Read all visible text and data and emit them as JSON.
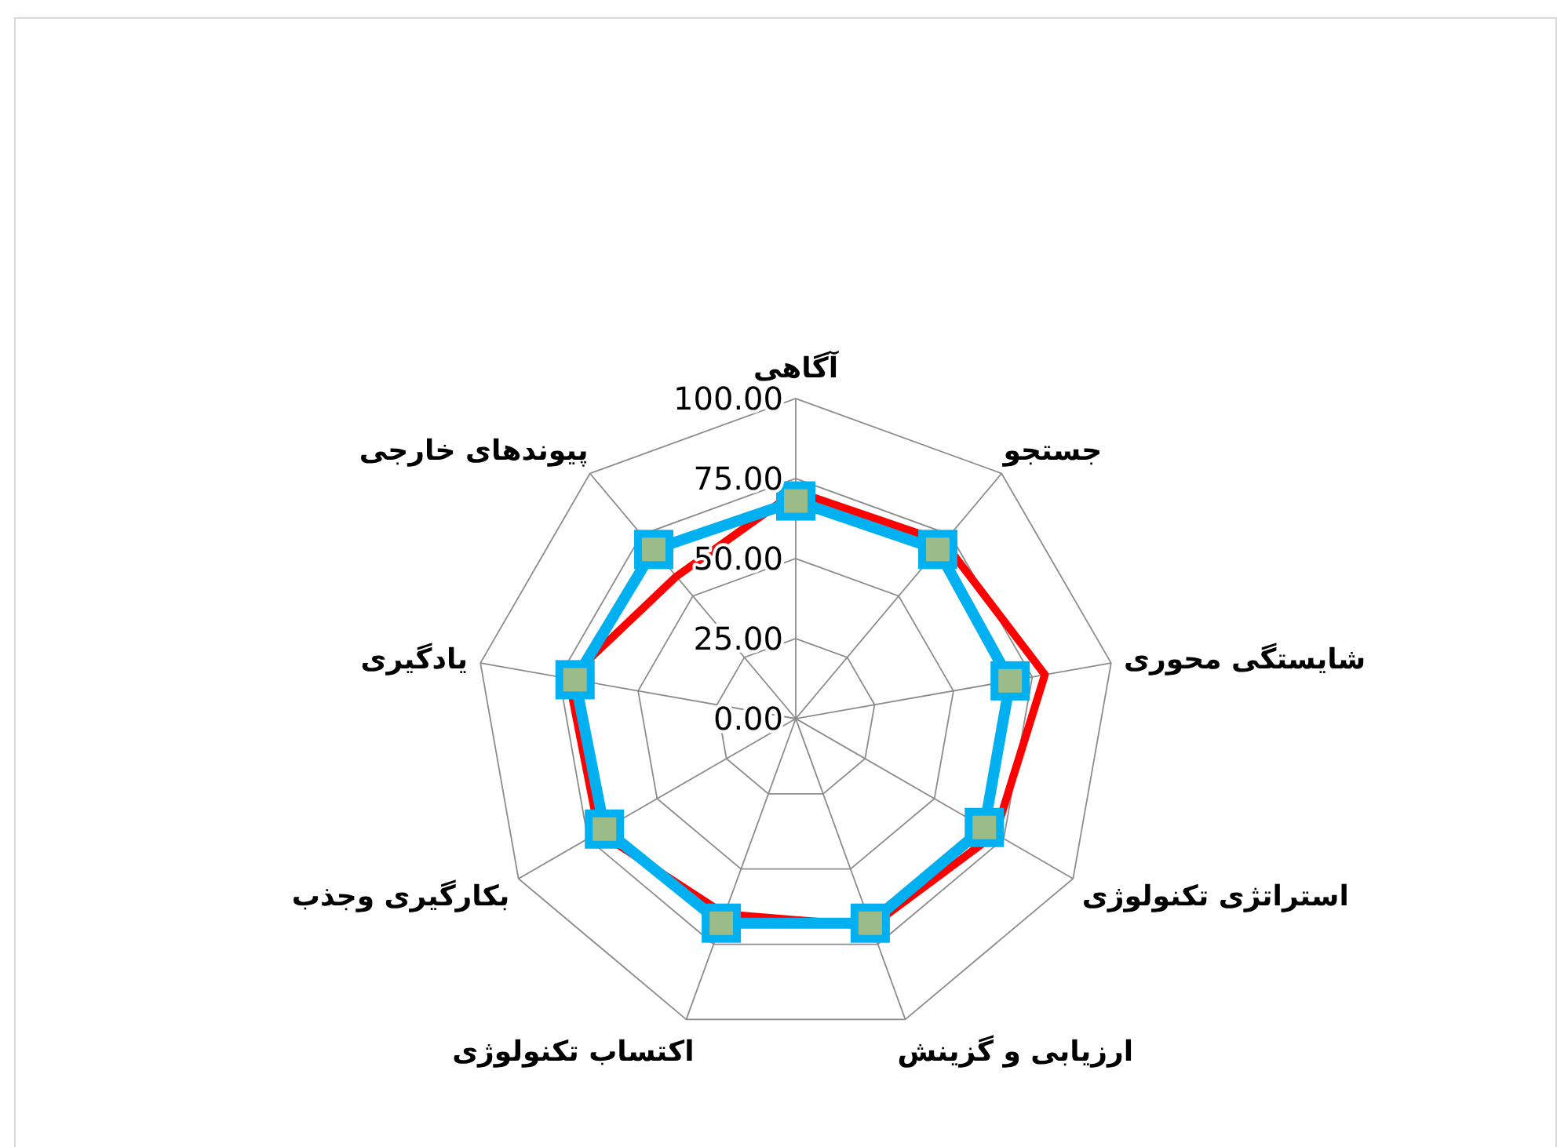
{
  "chart_data": {
    "type": "radar",
    "categories": [
      "آگاهی",
      "جستجو",
      "شایستگی محوری",
      "استراتژی تکنولوژی",
      "ارزیابی و گزینش",
      "اکتساب تکنولوژی",
      "بکارگیری وجذب",
      "یادگیری",
      "پیوندهای خارجی"
    ],
    "series": [
      {
        "color": "#ff0000",
        "marker": "none",
        "values": [
          71,
          72,
          79,
          72,
          69,
          65,
          71,
          72,
          58
        ]
      },
      {
        "color": "#00b0f0",
        "marker": "square",
        "values": [
          68,
          69,
          68,
          68,
          68,
          68,
          69,
          70,
          69
        ]
      }
    ],
    "ylim": [
      0,
      100
    ],
    "yticks": [
      {
        "value": 0,
        "label": "0.00"
      },
      {
        "value": 25,
        "label": "25.00"
      },
      {
        "value": 50,
        "label": "50.00"
      },
      {
        "value": 75,
        "label": "75.00"
      },
      {
        "value": 100,
        "label": "100.00"
      }
    ],
    "grid": true
  }
}
